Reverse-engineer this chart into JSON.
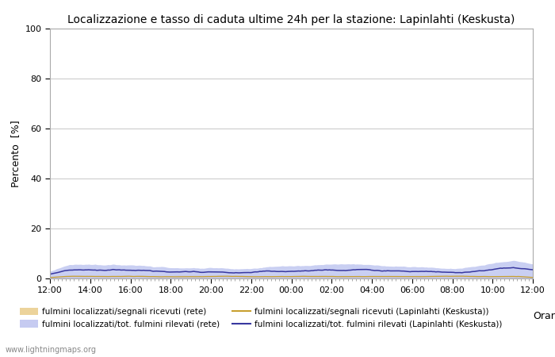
{
  "title": "Localizzazione e tasso di caduta ultime 24h per la stazione: Lapinlahti (Keskusta)",
  "ylabel": "Percento  [%]",
  "xlabel_right": "Orario",
  "watermark": "www.lightningmaps.org",
  "ylim": [
    0,
    100
  ],
  "yticks": [
    0,
    20,
    40,
    60,
    80,
    100
  ],
  "xtick_labels": [
    "12:00",
    "14:00",
    "16:00",
    "18:00",
    "20:00",
    "22:00",
    "00:00",
    "02:00",
    "04:00",
    "06:00",
    "08:00",
    "10:00",
    "12:00"
  ],
  "n_points": 300,
  "background_color": "#ffffff",
  "plot_bg_color": "#ffffff",
  "grid_color": "#cccccc",
  "fill_rete_color": "#e8c882",
  "fill_rete_alpha": 0.55,
  "fill_lapinlahti_color": "#b8bfee",
  "fill_lapinlahti_alpha": 0.75,
  "line_rete_color": "#c8a030",
  "line_lapinlahti_color": "#3838a0",
  "legend_labels": [
    "fulmini localizzati/segnali ricevuti (rete)",
    "fulmini localizzati/segnali ricevuti (Lapinlahti (Keskusta))",
    "fulmini localizzati/tot. fulmini rilevati (rete)",
    "fulmini localizzati/tot. fulmini rilevati (Lapinlahti (Keskusta))"
  ]
}
